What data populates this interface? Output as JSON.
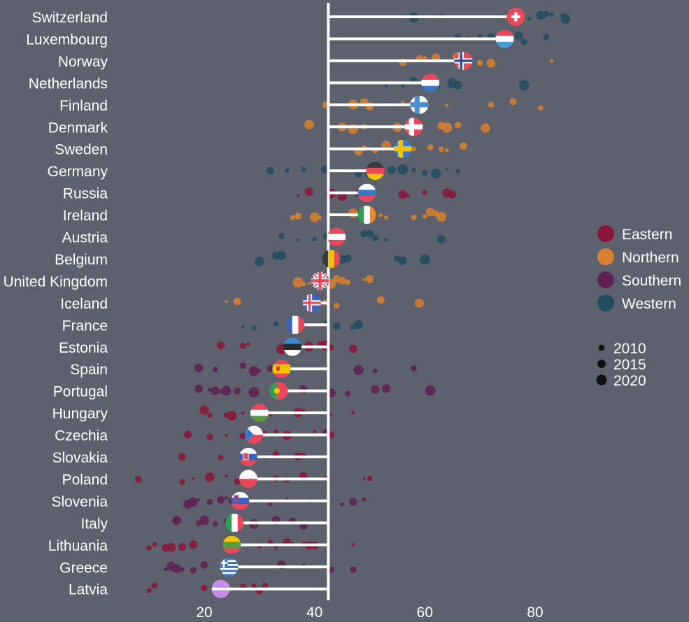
{
  "chart_data": {
    "type": "dumbbell-scatter",
    "title": "",
    "xlabel": "",
    "ylabel": "",
    "xlim": [
      0,
      93
    ],
    "xticks": [
      20,
      40,
      60,
      80
    ],
    "reference_line": 42.5,
    "reference_label": "",
    "colors": {
      "Eastern": "#8a1538",
      "Northern": "#d98030",
      "Southern": "#5e2150",
      "Western": "#1f4e5f",
      "line": "#ffffff",
      "background": "#5d616d"
    },
    "legend": {
      "position": "right",
      "groups": [
        "Eastern",
        "Northern",
        "Southern",
        "Western"
      ],
      "size_labels": [
        "2010",
        "2015",
        "2020"
      ]
    },
    "countries": [
      {
        "name": "Switzerland",
        "region": "Western",
        "value": 76.5,
        "flag": "swiss",
        "points": [
          58,
          63,
          77,
          79,
          81,
          82,
          83,
          85,
          85.5
        ]
      },
      {
        "name": "Luxembourg",
        "region": "Western",
        "value": 74.5,
        "flag": "hstripes:#e8485a,#ffffff,#4a9cd8",
        "points": [
          66,
          68,
          70,
          72,
          75,
          77,
          78,
          82
        ]
      },
      {
        "name": "Norway",
        "region": "Northern",
        "value": 67,
        "flag": "nordic:#e8485a,#ffffff,#2e4a8a",
        "points": [
          56,
          59,
          60,
          62,
          66,
          70,
          72,
          83
        ]
      },
      {
        "name": "Netherlands",
        "region": "Western",
        "value": 61,
        "flag": "hstripes:#e8485a,#ffffff,#3a78c8",
        "points": [
          53,
          56,
          58,
          62,
          65,
          66,
          78
        ]
      },
      {
        "name": "Finland",
        "region": "Northern",
        "value": 59,
        "flag": "nordic:#ffffff,#4a90d0",
        "points": [
          42,
          47,
          49,
          50,
          56,
          58,
          60,
          64,
          72,
          76,
          81
        ]
      },
      {
        "name": "Denmark",
        "region": "Northern",
        "value": 58,
        "flag": "nordic:#e8485a,#ffffff",
        "points": [
          39,
          45,
          47,
          49,
          55,
          57,
          63,
          64,
          66,
          71
        ]
      },
      {
        "name": "Sweden",
        "region": "Northern",
        "value": 56,
        "flag": "nordic:#3a78c8,#f2c500",
        "points": [
          48,
          49,
          51,
          53,
          58,
          61,
          63,
          64,
          67
        ]
      },
      {
        "name": "Germany",
        "region": "Western",
        "value": 51,
        "flag": "hstripes:#3a3a3a,#e8485a,#f2c500",
        "points": [
          32,
          35,
          38,
          42,
          48,
          50,
          54,
          56,
          58,
          60,
          62,
          64,
          66
        ]
      },
      {
        "name": "Russia",
        "region": "Eastern",
        "value": 49.5,
        "flag": "hstripes:#ffffff,#3a78c8,#e8485a",
        "points": [
          37,
          39,
          43,
          45,
          48,
          56,
          57,
          60,
          64,
          65
        ]
      },
      {
        "name": "Ireland",
        "region": "Northern",
        "value": 49.5,
        "flag": "vstripes:#2fa050,#ffffff,#f08a20",
        "points": [
          36,
          37,
          40,
          41,
          47,
          49,
          52,
          53,
          58,
          60,
          61,
          62,
          63
        ]
      },
      {
        "name": "Austria",
        "region": "Western",
        "value": 44,
        "flag": "hstripes:#e8485a,#ffffff,#e8485a",
        "points": [
          34,
          37,
          40,
          42,
          43,
          49,
          50,
          51,
          53,
          63
        ]
      },
      {
        "name": "Belgium",
        "region": "Western",
        "value": 43,
        "flag": "vstripes:#3a3a3a,#f2c500,#e8485a",
        "points": [
          30,
          33,
          34,
          43,
          45,
          46,
          55,
          56,
          60
        ]
      },
      {
        "name": "United Kingdom",
        "region": "Northern",
        "value": 41,
        "flag": "uk",
        "points": [
          37,
          38,
          39,
          41,
          43,
          44,
          45,
          46,
          49,
          50
        ]
      },
      {
        "name": "Iceland",
        "region": "Northern",
        "value": 39.5,
        "flag": "nordic:#3a62c0,#ffffff,#e8485a",
        "points": [
          24,
          26,
          39,
          42,
          44,
          52,
          59
        ]
      },
      {
        "name": "France",
        "region": "Western",
        "value": 36.5,
        "flag": "vstripes:#3a62c0,#ffffff,#e8485a",
        "points": [
          27,
          29,
          33,
          36,
          42,
          44,
          47,
          48
        ]
      },
      {
        "name": "Estonia",
        "region": "Eastern",
        "value": 36,
        "flag": "hstripes:#3a8ad0,#2a2a2a,#ffffff",
        "points": [
          23,
          27,
          28,
          34,
          35,
          39,
          41,
          42,
          43,
          47
        ]
      },
      {
        "name": "Spain",
        "region": "Southern",
        "value": 34,
        "flag": "spain",
        "points": [
          19,
          22,
          27,
          29,
          30,
          32,
          48,
          51,
          58
        ]
      },
      {
        "name": "Portugal",
        "region": "Southern",
        "value": 33.5,
        "flag": "portugal",
        "points": [
          19,
          21,
          22,
          23,
          24,
          26,
          29,
          38,
          43,
          46,
          51,
          53,
          61
        ]
      },
      {
        "name": "Hungary",
        "region": "Eastern",
        "value": 30,
        "flag": "hstripes:#e8485a,#ffffff,#5a9a40",
        "points": [
          20,
          21,
          24,
          25,
          27,
          30,
          32,
          37,
          38,
          43,
          47
        ]
      },
      {
        "name": "Czechia",
        "region": "Eastern",
        "value": 29,
        "flag": "czech",
        "points": [
          17,
          21,
          24,
          27,
          31,
          33,
          35,
          40,
          42,
          43
        ]
      },
      {
        "name": "Slovakia",
        "region": "Eastern",
        "value": 28,
        "flag": "slovakia",
        "points": [
          16,
          23,
          27,
          31,
          33,
          37,
          38
        ]
      },
      {
        "name": "Poland",
        "region": "Eastern",
        "value": 28,
        "flag": "hstripes:#ffffff,#e8485a",
        "points": [
          8,
          16,
          18,
          21,
          24,
          26,
          29,
          33,
          35,
          38,
          42,
          49,
          50
        ]
      },
      {
        "name": "Slovenia",
        "region": "Southern",
        "value": 26.5,
        "flag": "slovenia",
        "points": [
          17,
          18,
          19,
          21,
          23,
          24,
          25,
          27,
          32,
          35,
          39,
          45,
          47,
          49
        ]
      },
      {
        "name": "Italy",
        "region": "Southern",
        "value": 25.5,
        "flag": "vstripes:#2fa050,#ffffff,#e8485a",
        "points": [
          15,
          19,
          20,
          22,
          24,
          25,
          29,
          33,
          36,
          38
        ]
      },
      {
        "name": "Lithuania",
        "region": "Eastern",
        "value": 25,
        "flag": "hstripes:#f2c500,#5a9a40,#e8485a",
        "points": [
          10,
          11,
          13,
          14,
          16,
          18,
          30,
          32,
          33,
          35,
          36,
          38,
          39,
          40,
          47
        ]
      },
      {
        "name": "Greece",
        "region": "Southern",
        "value": 24.5,
        "flag": "greece",
        "points": [
          13,
          14,
          15,
          16,
          18,
          20,
          24,
          34,
          38,
          43,
          47
        ]
      },
      {
        "name": "Latvia",
        "region": "Eastern",
        "value": 23,
        "flag": "latvia",
        "points": [
          10,
          11,
          20,
          22,
          27,
          29,
          30,
          31
        ]
      }
    ]
  }
}
